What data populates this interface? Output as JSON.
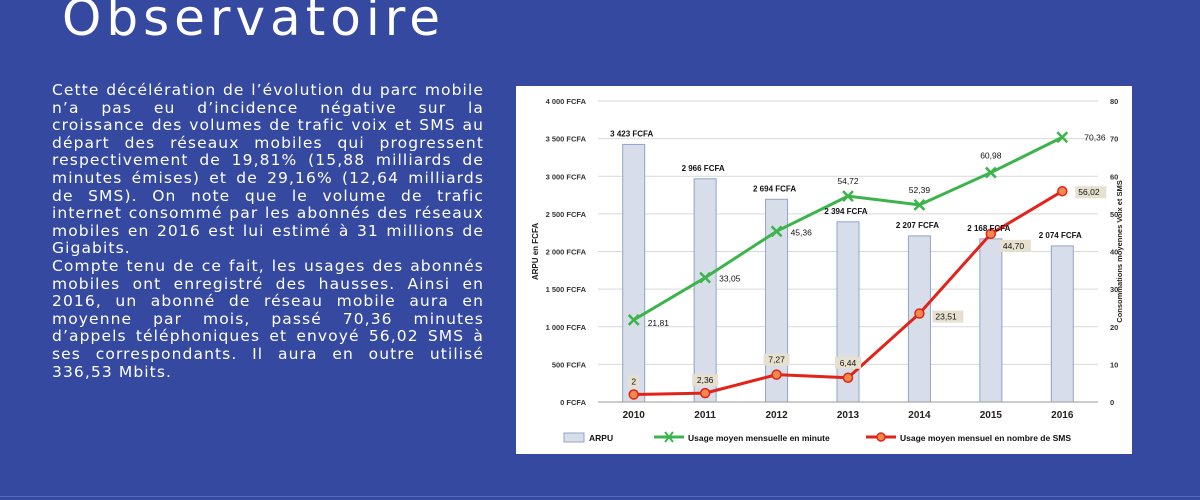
{
  "page": {
    "title": "Observatoire",
    "paragraphs": [
      "Cette décélération de l’évolution du parc mobile n’a pas eu d’incidence négative sur la croissance des volumes de trafic voix et SMS au départ des réseaux mobiles qui progressent respectivement de 19,81% (15,88 milliards de minutes émises) et de 29,16% (12,64 milliards de SMS). On note que le volume de trafic internet consommé par les abonnés des réseaux mobiles en 2016 est lui estimé à 31 millions de Gigabits.",
      "Compte tenu de ce fait, les usages des abonnés mobiles ont enregistré des hausses. Ainsi en 2016, un abonné de réseau mobile aura en moyenne par mois, passé 70,36 minutes d’appels téléphoniques et envoyé 56,02 SMS à ses correspondants. Il aura en outre utilisé 336,53 Mbits."
    ]
  },
  "colors": {
    "background": "#3549a0",
    "bar_fill": "#d7deea",
    "bar_stroke": "#8fa4c8",
    "minutes_line": "#3cb44b",
    "sms_line": "#e2231a",
    "sms_marker": "#f08a4b",
    "label_box": "#e6e0cf"
  },
  "chart_data": {
    "type": "bar",
    "categories": [
      "2010",
      "2011",
      "2012",
      "2013",
      "2014",
      "2015",
      "2016"
    ],
    "ylabel": "ARPU en FCFA",
    "y2label": "Consommations moyennes Voix et SMS",
    "ylim": [
      0,
      4000
    ],
    "y2lim": [
      0,
      80
    ],
    "yticks": [
      "0 FCFA",
      "500 FCFA",
      "1 000 FCFA",
      "1 500 FCFA",
      "2 000 FCFA",
      "2 500 FCFA",
      "3 000 FCFA",
      "3 500 FCFA",
      "4 000 FCFA"
    ],
    "y2ticks": [
      "0",
      "10",
      "20",
      "30",
      "40",
      "50",
      "60",
      "70",
      "80"
    ],
    "grid": true,
    "legend_position": "bottom",
    "series": [
      {
        "name": "ARPU",
        "type": "bar",
        "axis": "left",
        "values": [
          3423,
          2966,
          2694,
          2394,
          2207,
          2168,
          2074
        ],
        "labels": [
          "3 423 FCFA",
          "2 966 FCFA",
          "2 694 FCFA",
          "2 394 FCFA",
          "2 207 FCFA",
          "2 168 FCFA",
          "2 074 FCFA"
        ]
      },
      {
        "name": "Usage moyen mensuelle en minute",
        "type": "line",
        "axis": "right",
        "values": [
          21.81,
          33.05,
          45.36,
          54.72,
          52.39,
          60.98,
          70.36
        ],
        "labels": [
          "21,81",
          "33,05",
          "45,36",
          "54,72",
          "52,39",
          "60,98",
          "70,36"
        ]
      },
      {
        "name": "Usage moyen mensuel en nombre de SMS",
        "type": "line",
        "axis": "right",
        "values": [
          2,
          2.36,
          7.27,
          6.44,
          23.51,
          44.7,
          56.02
        ],
        "labels": [
          "2",
          "2,36",
          "7,27",
          "6,44",
          "23,51",
          "44,70",
          "56,02"
        ]
      }
    ]
  }
}
